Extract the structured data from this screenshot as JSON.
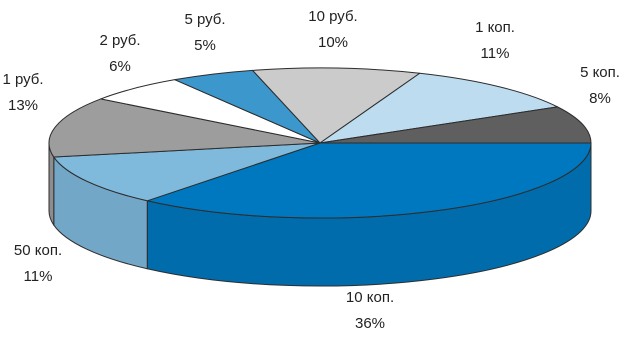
{
  "chart_data": {
    "type": "pie",
    "title": "",
    "start_angle_deg": 0,
    "slices": [
      {
        "id": "k10",
        "name": "10 коп.",
        "percent_label": "36%",
        "value": 36,
        "color": "#0078bf"
      },
      {
        "id": "k50",
        "name": "50 коп.",
        "percent_label": "11%",
        "value": 11,
        "color": "#7fbadd"
      },
      {
        "id": "r1",
        "name": "1 руб.",
        "percent_label": "13%",
        "value": 13,
        "color": "#9d9d9d"
      },
      {
        "id": "r2",
        "name": "2 руб.",
        "percent_label": "6%",
        "value": 6,
        "color": "#ffffff"
      },
      {
        "id": "r5",
        "name": "5 руб.",
        "percent_label": "5%",
        "value": 5,
        "color": "#3b97cc"
      },
      {
        "id": "r10",
        "name": "10 руб.",
        "percent_label": "10%",
        "value": 10,
        "color": "#cbcbcb"
      },
      {
        "id": "k1",
        "name": "1 коп.",
        "percent_label": "11%",
        "value": 11,
        "color": "#bddcef"
      },
      {
        "id": "k5",
        "name": "5 коп.",
        "percent_label": "8%",
        "value": 8,
        "color": "#5f5f5f"
      }
    ]
  }
}
